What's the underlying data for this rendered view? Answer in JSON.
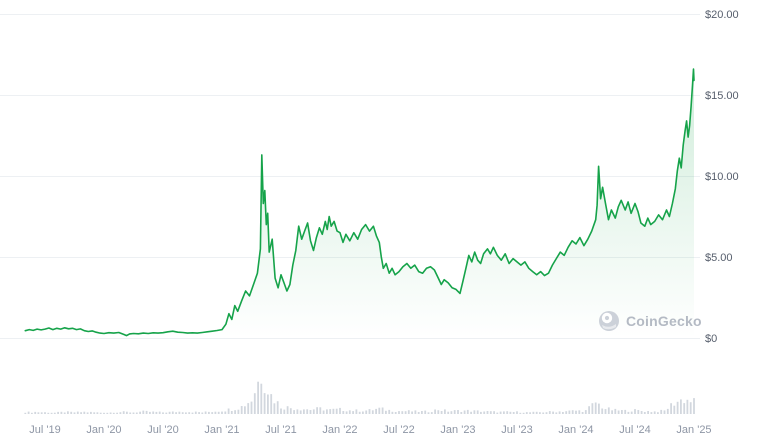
{
  "watermark": {
    "label": "CoinGecko"
  },
  "colors": {
    "line": "#16a34a",
    "fill_top": "rgba(22,163,74,0.20)",
    "fill_bottom": "rgba(22,163,74,0)",
    "grid": "#edf0f3",
    "volume_bar": "#d2d7de",
    "y_label": "#565e6c",
    "x_label": "#8e96a5",
    "watermark_text": "#b4bac4",
    "watermark_icon": "#ccd1d9"
  },
  "chart_data": {
    "type": "line",
    "title": "",
    "legend": [],
    "grid": true,
    "y_axis": {
      "position": "right",
      "range": [
        0,
        20
      ],
      "values": [
        20,
        15,
        10,
        5,
        0
      ],
      "labels": [
        "$20.00",
        "$15.00",
        "$10.00",
        "$5.00",
        "$0"
      ]
    },
    "x_axis": {
      "tick_interval_months": 6,
      "labels": [
        "Jul '19",
        "Jan '20",
        "Jul '20",
        "Jan '21",
        "Jul '21",
        "Jan '22",
        "Jul '22",
        "Jan '23",
        "Jul '23",
        "Jan '24",
        "Jul '24",
        "Jan '25"
      ]
    },
    "series": [
      {
        "name": "price_usd",
        "unit": "USD",
        "points": [
          [
            -2,
            0.45
          ],
          [
            -1.6,
            0.52
          ],
          [
            -1.2,
            0.47
          ],
          [
            -0.8,
            0.55
          ],
          [
            -0.4,
            0.5
          ],
          [
            0,
            0.55
          ],
          [
            0.4,
            0.62
          ],
          [
            0.8,
            0.52
          ],
          [
            1.2,
            0.6
          ],
          [
            1.6,
            0.55
          ],
          [
            2,
            0.63
          ],
          [
            2.4,
            0.57
          ],
          [
            2.8,
            0.6
          ],
          [
            3.2,
            0.52
          ],
          [
            3.6,
            0.56
          ],
          [
            4,
            0.45
          ],
          [
            4.4,
            0.4
          ],
          [
            4.8,
            0.44
          ],
          [
            5.2,
            0.36
          ],
          [
            5.6,
            0.3
          ],
          [
            6,
            0.28
          ],
          [
            6.5,
            0.33
          ],
          [
            7,
            0.3
          ],
          [
            7.5,
            0.34
          ],
          [
            8,
            0.22
          ],
          [
            8.3,
            0.15
          ],
          [
            8.6,
            0.25
          ],
          [
            9,
            0.28
          ],
          [
            9.5,
            0.26
          ],
          [
            10,
            0.3
          ],
          [
            10.5,
            0.28
          ],
          [
            11,
            0.32
          ],
          [
            11.5,
            0.3
          ],
          [
            12,
            0.33
          ],
          [
            12.5,
            0.38
          ],
          [
            13,
            0.42
          ],
          [
            13.5,
            0.36
          ],
          [
            14,
            0.34
          ],
          [
            14.5,
            0.3
          ],
          [
            15,
            0.32
          ],
          [
            15.5,
            0.3
          ],
          [
            16,
            0.34
          ],
          [
            16.5,
            0.38
          ],
          [
            17,
            0.42
          ],
          [
            17.5,
            0.46
          ],
          [
            18,
            0.52
          ],
          [
            18.4,
            0.85
          ],
          [
            18.7,
            1.5
          ],
          [
            19,
            1.15
          ],
          [
            19.3,
            2.0
          ],
          [
            19.6,
            1.65
          ],
          [
            20,
            2.3
          ],
          [
            20.4,
            2.9
          ],
          [
            20.8,
            2.6
          ],
          [
            21.2,
            3.3
          ],
          [
            21.6,
            4.0
          ],
          [
            21.9,
            5.5
          ],
          [
            22.05,
            11.3
          ],
          [
            22.2,
            8.3
          ],
          [
            22.35,
            9.1
          ],
          [
            22.5,
            7.0
          ],
          [
            22.65,
            7.7
          ],
          [
            22.8,
            5.3
          ],
          [
            23.1,
            6.1
          ],
          [
            23.4,
            3.7
          ],
          [
            23.7,
            3.1
          ],
          [
            24,
            3.9
          ],
          [
            24.3,
            3.4
          ],
          [
            24.6,
            2.9
          ],
          [
            24.9,
            3.3
          ],
          [
            25.2,
            4.5
          ],
          [
            25.5,
            5.4
          ],
          [
            25.8,
            6.9
          ],
          [
            26.1,
            6.1
          ],
          [
            26.4,
            6.6
          ],
          [
            26.7,
            7.1
          ],
          [
            27,
            6.0
          ],
          [
            27.3,
            5.4
          ],
          [
            27.6,
            6.2
          ],
          [
            27.9,
            6.8
          ],
          [
            28.2,
            6.4
          ],
          [
            28.5,
            7.2
          ],
          [
            28.7,
            6.7
          ],
          [
            28.9,
            7.5
          ],
          [
            29.1,
            6.9
          ],
          [
            29.4,
            7.2
          ],
          [
            29.7,
            6.6
          ],
          [
            30,
            6.5
          ],
          [
            30.3,
            5.9
          ],
          [
            30.6,
            6.4
          ],
          [
            31,
            6.0
          ],
          [
            31.4,
            6.5
          ],
          [
            31.8,
            6.1
          ],
          [
            32.2,
            6.7
          ],
          [
            32.6,
            7.0
          ],
          [
            33,
            6.6
          ],
          [
            33.4,
            6.9
          ],
          [
            33.7,
            6.3
          ],
          [
            34,
            5.9
          ],
          [
            34.2,
            5.0
          ],
          [
            34.4,
            4.3
          ],
          [
            34.7,
            4.6
          ],
          [
            35,
            4.0
          ],
          [
            35.3,
            4.3
          ],
          [
            35.6,
            3.9
          ],
          [
            36,
            4.1
          ],
          [
            36.4,
            4.4
          ],
          [
            36.8,
            4.6
          ],
          [
            37.2,
            4.3
          ],
          [
            37.6,
            4.5
          ],
          [
            38,
            4.1
          ],
          [
            38.4,
            4.0
          ],
          [
            38.8,
            4.3
          ],
          [
            39.2,
            4.4
          ],
          [
            39.6,
            4.2
          ],
          [
            40,
            3.7
          ],
          [
            40.3,
            3.3
          ],
          [
            40.6,
            3.6
          ],
          [
            41,
            3.4
          ],
          [
            41.4,
            3.1
          ],
          [
            41.8,
            3.0
          ],
          [
            42.2,
            2.75
          ],
          [
            42.5,
            3.5
          ],
          [
            42.8,
            4.3
          ],
          [
            43.1,
            5.1
          ],
          [
            43.4,
            4.7
          ],
          [
            43.7,
            5.3
          ],
          [
            44,
            4.8
          ],
          [
            44.3,
            4.6
          ],
          [
            44.6,
            5.2
          ],
          [
            45,
            5.5
          ],
          [
            45.3,
            5.2
          ],
          [
            45.6,
            5.6
          ],
          [
            46,
            5.1
          ],
          [
            46.4,
            4.8
          ],
          [
            46.8,
            5.2
          ],
          [
            47.2,
            4.6
          ],
          [
            47.6,
            4.9
          ],
          [
            48,
            4.7
          ],
          [
            48.4,
            4.5
          ],
          [
            48.8,
            4.7
          ],
          [
            49.2,
            4.3
          ],
          [
            49.6,
            4.1
          ],
          [
            50,
            3.9
          ],
          [
            50.4,
            4.1
          ],
          [
            50.8,
            3.85
          ],
          [
            51.2,
            4.0
          ],
          [
            51.6,
            4.5
          ],
          [
            52,
            4.9
          ],
          [
            52.4,
            5.3
          ],
          [
            52.8,
            5.1
          ],
          [
            53.2,
            5.6
          ],
          [
            53.6,
            6.0
          ],
          [
            54,
            5.8
          ],
          [
            54.4,
            6.2
          ],
          [
            54.8,
            5.7
          ],
          [
            55.2,
            6.1
          ],
          [
            55.6,
            6.6
          ],
          [
            56,
            7.3
          ],
          [
            56.15,
            8.2
          ],
          [
            56.3,
            10.6
          ],
          [
            56.5,
            8.6
          ],
          [
            56.7,
            9.3
          ],
          [
            57,
            8.3
          ],
          [
            57.3,
            7.3
          ],
          [
            57.6,
            7.9
          ],
          [
            58,
            7.4
          ],
          [
            58.3,
            8.1
          ],
          [
            58.6,
            8.5
          ],
          [
            59,
            7.9
          ],
          [
            59.3,
            8.4
          ],
          [
            59.6,
            7.7
          ],
          [
            60,
            8.3
          ],
          [
            60.3,
            7.8
          ],
          [
            60.6,
            7.1
          ],
          [
            61,
            6.9
          ],
          [
            61.3,
            7.4
          ],
          [
            61.6,
            7.0
          ],
          [
            62,
            7.2
          ],
          [
            62.4,
            7.6
          ],
          [
            62.8,
            7.3
          ],
          [
            63.2,
            7.9
          ],
          [
            63.5,
            7.5
          ],
          [
            63.8,
            8.3
          ],
          [
            64.1,
            9.2
          ],
          [
            64.3,
            10.3
          ],
          [
            64.5,
            11.1
          ],
          [
            64.7,
            10.5
          ],
          [
            64.9,
            11.9
          ],
          [
            65.1,
            12.8
          ],
          [
            65.25,
            13.4
          ],
          [
            65.4,
            12.4
          ],
          [
            65.55,
            13.1
          ],
          [
            65.7,
            14.3
          ],
          [
            65.85,
            15.6
          ],
          [
            65.95,
            16.6
          ],
          [
            66,
            15.9
          ]
        ]
      }
    ],
    "volume": {
      "note": "relative volume profile, 1.0 = tallest bar",
      "start_month": -2,
      "monthly": [
        0.04,
        0.05,
        0.04,
        0.03,
        0.05,
        0.04,
        0.05,
        0.04,
        0.03,
        0.04,
        0.05,
        0.04,
        0.06,
        0.05,
        0.04,
        0.05,
        0.06,
        0.05,
        0.04,
        0.06,
        0.08,
        0.12,
        0.18,
        0.35,
        1.0,
        0.45,
        0.18,
        0.15,
        0.13,
        0.11,
        0.13,
        0.1,
        0.11,
        0.09,
        0.08,
        0.09,
        0.13,
        0.09,
        0.07,
        0.07,
        0.06,
        0.06,
        0.11,
        0.07,
        0.08,
        0.08,
        0.07,
        0.06,
        0.05,
        0.05,
        0.05,
        0.04,
        0.04,
        0.05,
        0.06,
        0.07,
        0.08,
        0.08,
        0.28,
        0.13,
        0.09,
        0.08,
        0.09,
        0.07,
        0.06,
        0.08,
        0.28,
        0.36,
        0.3
      ]
    }
  }
}
